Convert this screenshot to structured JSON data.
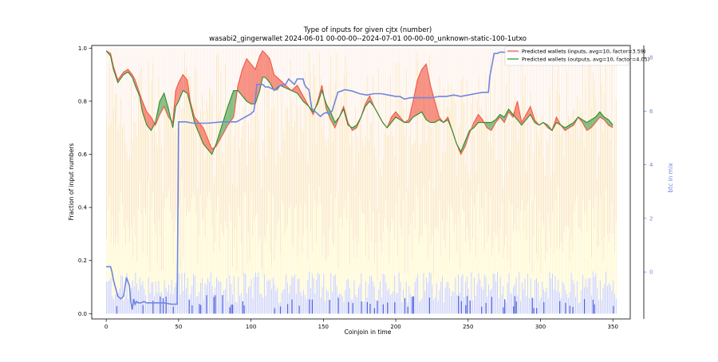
{
  "chart_data": {
    "type": "line",
    "title": "Type of inputs for given cjtx (number)",
    "subtitle": "wasabi2_gingerwallet 2024-06-01 00-00-00--2024-07-01 00-00-00_unknown-static-100-1utxo",
    "xlabel": "Coinjoin in time",
    "ylabel": "Fraction of input numbers",
    "y2label": "btc in mix",
    "xlim": [
      -10,
      362
    ],
    "ylim": [
      -0.02,
      1.01
    ],
    "y2lim": [
      -1.75,
      8.45
    ],
    "xticks": [
      0,
      50,
      100,
      150,
      200,
      250,
      300,
      350
    ],
    "yticks": [
      0.0,
      0.2,
      0.4,
      0.6,
      0.8,
      1.0
    ],
    "y2ticks": [
      0,
      2,
      4,
      6,
      8
    ],
    "grid": false,
    "legend_position": "top-right",
    "colors": {
      "inputs": "#ef5a4a",
      "outputs": "#2e8b2e",
      "btc": "#6f86e0",
      "top_band": "#fbe3d6",
      "mid_band": "#f6cb7a",
      "low_band": "#fff3a8",
      "bottom_band": "#aab2f2"
    },
    "series": [
      {
        "name": "Predicted wallets (inputs, avg=10, factor=3.59)",
        "x": [
          0,
          3,
          5,
          8,
          12,
          15,
          18,
          20,
          23,
          25,
          28,
          31,
          34,
          37,
          40,
          43,
          46,
          48,
          50,
          53,
          56,
          58,
          61,
          64,
          67,
          70,
          73,
          76,
          80,
          84,
          88,
          91,
          94,
          97,
          100,
          103,
          106,
          108,
          110,
          113,
          116,
          120,
          124,
          128,
          132,
          136,
          140,
          143,
          146,
          149,
          152,
          155,
          158,
          161,
          164,
          167,
          170,
          173,
          176,
          179,
          182,
          185,
          188,
          191,
          194,
          197,
          200,
          203,
          206,
          209,
          212,
          215,
          218,
          221,
          224,
          227,
          230,
          233,
          236,
          239,
          242,
          245,
          248,
          251,
          254,
          257,
          260,
          263,
          266,
          269,
          272,
          275,
          278,
          281,
          284,
          287,
          290,
          293,
          296,
          299,
          302,
          305,
          308,
          311,
          314,
          317,
          320,
          323,
          326,
          329,
          332,
          335,
          338,
          341,
          344,
          347,
          350
        ],
        "values": [
          0.99,
          0.98,
          0.93,
          0.88,
          0.91,
          0.92,
          0.9,
          0.88,
          0.83,
          0.8,
          0.76,
          0.74,
          0.71,
          0.75,
          0.78,
          0.74,
          0.72,
          0.84,
          0.87,
          0.9,
          0.88,
          0.8,
          0.74,
          0.72,
          0.7,
          0.66,
          0.62,
          0.63,
          0.67,
          0.71,
          0.74,
          0.86,
          0.92,
          0.96,
          0.94,
          0.92,
          0.97,
          0.99,
          0.98,
          0.96,
          0.9,
          0.88,
          0.86,
          0.84,
          0.86,
          0.82,
          0.78,
          0.75,
          0.8,
          0.86,
          0.77,
          0.73,
          0.7,
          0.74,
          0.78,
          0.72,
          0.69,
          0.7,
          0.74,
          0.79,
          0.82,
          0.78,
          0.75,
          0.72,
          0.7,
          0.74,
          0.76,
          0.74,
          0.72,
          0.73,
          0.8,
          0.88,
          0.92,
          0.94,
          0.86,
          0.8,
          0.74,
          0.72,
          0.74,
          0.69,
          0.64,
          0.6,
          0.63,
          0.68,
          0.72,
          0.75,
          0.73,
          0.7,
          0.69,
          0.72,
          0.74,
          0.72,
          0.76,
          0.74,
          0.8,
          0.72,
          0.75,
          0.78,
          0.73,
          0.71,
          0.72,
          0.7,
          0.69,
          0.74,
          0.71,
          0.69,
          0.7,
          0.71,
          0.74,
          0.72,
          0.69,
          0.7,
          0.72,
          0.74,
          0.73,
          0.71,
          0.7
        ]
      },
      {
        "name": "Predicted wallets (outputs, avg=10, factor=4.05)",
        "x": [
          0,
          3,
          5,
          8,
          12,
          15,
          18,
          20,
          23,
          25,
          28,
          31,
          34,
          37,
          40,
          43,
          46,
          48,
          50,
          53,
          56,
          58,
          61,
          64,
          67,
          70,
          73,
          76,
          80,
          84,
          88,
          91,
          94,
          97,
          100,
          103,
          106,
          108,
          110,
          113,
          116,
          120,
          124,
          128,
          132,
          136,
          140,
          143,
          146,
          149,
          152,
          155,
          158,
          161,
          164,
          167,
          170,
          173,
          176,
          179,
          182,
          185,
          188,
          191,
          194,
          197,
          200,
          203,
          206,
          209,
          212,
          215,
          218,
          221,
          224,
          227,
          230,
          233,
          236,
          239,
          242,
          245,
          248,
          251,
          254,
          257,
          260,
          263,
          266,
          269,
          272,
          275,
          278,
          281,
          284,
          287,
          290,
          293,
          296,
          299,
          302,
          305,
          308,
          311,
          314,
          317,
          320,
          323,
          326,
          329,
          332,
          335,
          338,
          341,
          344,
          347,
          350
        ],
        "values": [
          0.99,
          0.97,
          0.92,
          0.87,
          0.9,
          0.91,
          0.89,
          0.86,
          0.82,
          0.76,
          0.71,
          0.69,
          0.72,
          0.8,
          0.83,
          0.77,
          0.7,
          0.78,
          0.8,
          0.84,
          0.83,
          0.79,
          0.72,
          0.68,
          0.64,
          0.62,
          0.6,
          0.64,
          0.71,
          0.78,
          0.84,
          0.84,
          0.82,
          0.8,
          0.79,
          0.79,
          0.84,
          0.89,
          0.89,
          0.87,
          0.84,
          0.86,
          0.85,
          0.84,
          0.83,
          0.8,
          0.78,
          0.76,
          0.79,
          0.84,
          0.79,
          0.76,
          0.72,
          0.74,
          0.77,
          0.71,
          0.7,
          0.71,
          0.74,
          0.78,
          0.8,
          0.78,
          0.75,
          0.72,
          0.7,
          0.72,
          0.74,
          0.73,
          0.72,
          0.72,
          0.74,
          0.75,
          0.76,
          0.73,
          0.72,
          0.72,
          0.73,
          0.72,
          0.73,
          0.69,
          0.64,
          0.61,
          0.65,
          0.69,
          0.7,
          0.72,
          0.72,
          0.72,
          0.72,
          0.73,
          0.75,
          0.74,
          0.77,
          0.75,
          0.73,
          0.71,
          0.73,
          0.75,
          0.72,
          0.71,
          0.72,
          0.71,
          0.69,
          0.72,
          0.71,
          0.7,
          0.71,
          0.72,
          0.74,
          0.73,
          0.72,
          0.73,
          0.74,
          0.76,
          0.74,
          0.73,
          0.71
        ]
      },
      {
        "name": "btc in mix",
        "axis": "right",
        "x": [
          0,
          3,
          4,
          5,
          6,
          8,
          10,
          12,
          14,
          16,
          17,
          18,
          19,
          20,
          21,
          22,
          24,
          26,
          28,
          30,
          35,
          40,
          45,
          49,
          50,
          51,
          55,
          60,
          70,
          80,
          90,
          100,
          102,
          103,
          104,
          106,
          108,
          110,
          112,
          114,
          116,
          118,
          120,
          124,
          126,
          128,
          130,
          132,
          134,
          136,
          137,
          138,
          140,
          142,
          144,
          146,
          148,
          150,
          152,
          154,
          156,
          160,
          165,
          170,
          175,
          180,
          185,
          190,
          195,
          200,
          203,
          206,
          210,
          215,
          220,
          225,
          230,
          235,
          240,
          245,
          250,
          255,
          260,
          264,
          265,
          268,
          270,
          272,
          275,
          280,
          285,
          290,
          295,
          300,
          305,
          310,
          320,
          330,
          340,
          350,
          353
        ],
        "values": [
          0.2,
          0.2,
          0.0,
          -0.3,
          -0.5,
          -0.9,
          -1.0,
          -0.9,
          -0.2,
          -0.5,
          -1.1,
          -1.4,
          -1.0,
          -1.2,
          -1.1,
          -1.15,
          -1.15,
          -1.1,
          -1.15,
          -1.15,
          -1.15,
          -1.15,
          -1.2,
          -1.2,
          5.6,
          5.6,
          5.6,
          5.55,
          5.55,
          5.6,
          5.6,
          5.9,
          6.0,
          6.4,
          7.0,
          7.0,
          7.0,
          6.9,
          6.9,
          6.85,
          6.8,
          6.8,
          6.95,
          7.0,
          7.2,
          7.1,
          7.0,
          7.2,
          7.2,
          7.2,
          7.0,
          6.9,
          6.8,
          6.1,
          6.0,
          5.9,
          5.8,
          5.9,
          5.95,
          5.9,
          6.0,
          6.7,
          6.8,
          6.75,
          6.65,
          6.6,
          6.65,
          6.65,
          6.6,
          6.55,
          6.55,
          6.45,
          6.5,
          6.5,
          6.5,
          6.5,
          6.55,
          6.55,
          6.6,
          6.55,
          6.6,
          6.65,
          6.7,
          6.7,
          7.3,
          8.15,
          8.15,
          8.2,
          8.2,
          8.2,
          8.2,
          8.2,
          8.2,
          8.2,
          8.2,
          8.2,
          8.2,
          8.2,
          8.2,
          8.2,
          8.2
        ]
      }
    ]
  }
}
